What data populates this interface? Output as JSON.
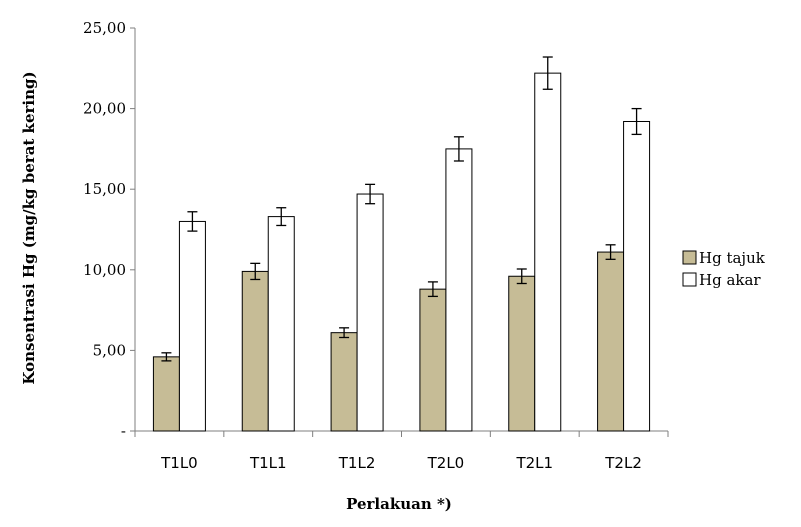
{
  "chart_data": {
    "type": "bar",
    "title": "",
    "xlabel": "Perlakuan *)",
    "ylabel": "Konsentrasi Hg (mg/kg berat kering)",
    "categories": [
      "T1L0",
      "T1L1",
      "T1L2",
      "T2L0",
      "T2L1",
      "T2L2"
    ],
    "ylim": [
      0,
      25
    ],
    "yticks": [
      {
        "value": 0,
        "label": "-"
      },
      {
        "value": 5,
        "label": "5,00"
      },
      {
        "value": 10,
        "label": "10,00"
      },
      {
        "value": 15,
        "label": "15,00"
      },
      {
        "value": 20,
        "label": "20,00"
      },
      {
        "value": 25,
        "label": "25,00"
      }
    ],
    "grid": false,
    "legend_position": "right",
    "series": [
      {
        "name": "Hg tajuk",
        "color": "#c6bc96",
        "values": [
          4.6,
          9.9,
          6.1,
          8.8,
          9.6,
          11.1
        ],
        "errors": [
          0.25,
          0.5,
          0.3,
          0.45,
          0.45,
          0.45
        ]
      },
      {
        "name": "Hg akar",
        "color": "#ffffff",
        "values": [
          13.0,
          13.3,
          14.7,
          17.5,
          22.2,
          19.2
        ],
        "errors": [
          0.6,
          0.55,
          0.6,
          0.75,
          1.0,
          0.8
        ]
      }
    ]
  }
}
